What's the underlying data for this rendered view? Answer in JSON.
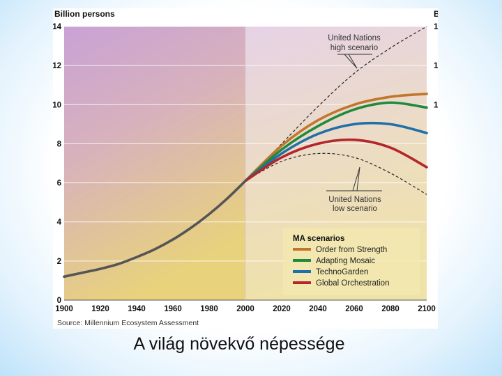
{
  "caption": "A világ növekvő népessége",
  "colors": {
    "order": "#c1762c",
    "mosaic": "#1f8a3c",
    "techno": "#1f6fa8",
    "global": "#b3262a",
    "un": "#222222",
    "history_bg_left": "#c9a2d6",
    "history_bg_bottom": "#e8d27c",
    "projection_bg": "#ead8e0"
  },
  "chart_data": {
    "type": "line",
    "ylabel": "Billion persons",
    "right_axis_partial_label": "B",
    "source": "Source: Millennium Ecosystem Assessment",
    "xlim": [
      1900,
      2100
    ],
    "ylim": [
      0,
      14
    ],
    "x_ticks": [
      "1900",
      "1920",
      "1940",
      "1960",
      "1980",
      "2000",
      "2020",
      "2040",
      "2060",
      "2080",
      "2100"
    ],
    "y_ticks": [
      "0",
      "2",
      "4",
      "6",
      "8",
      "10",
      "12",
      "14"
    ],
    "y_ticks_shown": [
      "0",
      "2",
      "4",
      "6",
      "8",
      "10",
      "12",
      "14"
    ],
    "right_ticks_shown": [
      "1",
      "1",
      "1"
    ],
    "projection_start": 2000,
    "history": {
      "x": [
        1900,
        1910,
        1920,
        1930,
        1940,
        1950,
        1960,
        1970,
        1980,
        1990,
        2000
      ],
      "values": [
        1.2,
        1.4,
        1.6,
        1.85,
        2.2,
        2.6,
        3.1,
        3.7,
        4.4,
        5.2,
        6.1
      ]
    },
    "series": [
      {
        "name": "Order from Strength",
        "color_key": "order",
        "x": [
          2000,
          2020,
          2040,
          2060,
          2080,
          2100
        ],
        "values": [
          6.1,
          7.9,
          9.2,
          10.0,
          10.4,
          10.55
        ]
      },
      {
        "name": "Adapting Mosaic",
        "color_key": "mosaic",
        "x": [
          2000,
          2020,
          2040,
          2060,
          2080,
          2100
        ],
        "values": [
          6.1,
          7.7,
          8.9,
          9.75,
          10.1,
          9.85
        ]
      },
      {
        "name": "TechnoGarden",
        "color_key": "techno",
        "x": [
          2000,
          2020,
          2040,
          2060,
          2080,
          2100
        ],
        "values": [
          6.1,
          7.5,
          8.5,
          9.0,
          9.0,
          8.55
        ]
      },
      {
        "name": "Global Orchestration",
        "color_key": "global",
        "x": [
          2000,
          2020,
          2040,
          2060,
          2080,
          2100
        ],
        "values": [
          6.1,
          7.3,
          8.0,
          8.2,
          7.8,
          6.8
        ]
      }
    ],
    "un_scenarios": [
      {
        "id": "high",
        "label_lines": [
          "United Nations",
          "high scenario"
        ],
        "x": [
          2000,
          2020,
          2040,
          2060,
          2080,
          2100
        ],
        "values": [
          6.1,
          8.0,
          9.9,
          11.6,
          12.9,
          14.0
        ]
      },
      {
        "id": "low",
        "label_lines": [
          "United Nations",
          "low scenario"
        ],
        "x": [
          2000,
          2020,
          2040,
          2060,
          2080,
          2100
        ],
        "values": [
          6.1,
          7.1,
          7.5,
          7.3,
          6.5,
          5.4
        ]
      }
    ],
    "legend": {
      "title": "MA scenarios",
      "placement": "bottom-right"
    }
  }
}
